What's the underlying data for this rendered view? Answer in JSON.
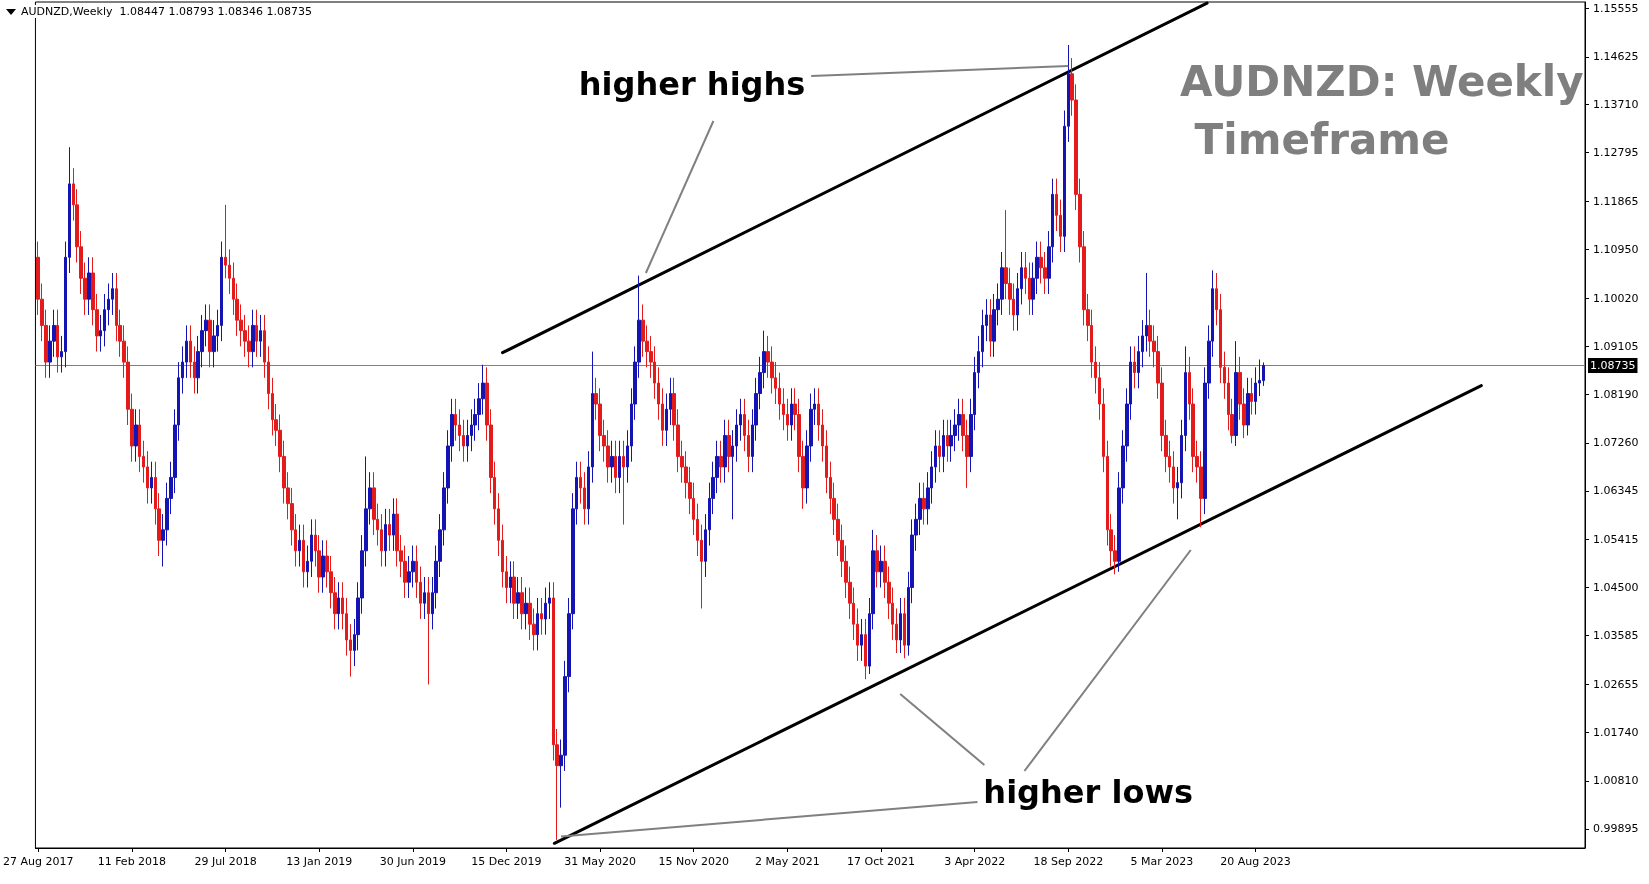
{
  "chart_data": {
    "type": "candlestick",
    "title": "AUDNZD,Weekly  1.08447 1.08793 1.08346 1.08735",
    "subtitle": "AUDNZD: Weekly Timeframe",
    "annotations": [
      {
        "text": "higher highs",
        "x": "2022-09-18",
        "y": 1.1445
      },
      {
        "text": "higher lows",
        "x": "2020-03-22",
        "y": 0.9975
      }
    ],
    "x": [
      "2017-08-27",
      "2017-09-03",
      "2017-09-10",
      "2017-09-17",
      "2017-09-24",
      "2017-10-01",
      "2017-10-08",
      "2017-10-15",
      "2017-10-22",
      "2017-10-29",
      "2017-11-05",
      "2017-11-12",
      "2017-11-19",
      "2017-11-26",
      "2017-12-03",
      "2017-12-10",
      "2017-12-17",
      "2017-12-24",
      "2017-12-31",
      "2018-01-07",
      "2018-01-14",
      "2018-01-21",
      "2018-01-28",
      "2018-02-04",
      "2018-02-11",
      "2018-02-18",
      "2018-02-25",
      "2018-03-04",
      "2018-03-11",
      "2018-03-18",
      "2018-03-25",
      "2018-04-01",
      "2018-04-08",
      "2018-04-15",
      "2018-04-22",
      "2018-04-29",
      "2018-05-06",
      "2018-05-13",
      "2018-05-20",
      "2018-05-27",
      "2018-06-03",
      "2018-06-10",
      "2018-06-17",
      "2018-06-24",
      "2018-07-01",
      "2018-07-08",
      "2018-07-15",
      "2018-07-22",
      "2018-07-29",
      "2018-08-05",
      "2018-08-12",
      "2018-08-19",
      "2018-08-26",
      "2018-09-02",
      "2018-09-09",
      "2018-09-16",
      "2018-09-23",
      "2018-09-30",
      "2018-10-07",
      "2018-10-14",
      "2018-10-21",
      "2018-10-28",
      "2018-11-04",
      "2018-11-11",
      "2018-11-18",
      "2018-11-25",
      "2018-12-02",
      "2018-12-09",
      "2018-12-16",
      "2018-12-23",
      "2018-12-30",
      "2019-01-06",
      "2019-01-13",
      "2019-01-20",
      "2019-01-27",
      "2019-02-03",
      "2019-02-10",
      "2019-02-17",
      "2019-02-24",
      "2019-03-03",
      "2019-03-10",
      "2019-03-17",
      "2019-03-24",
      "2019-03-31",
      "2019-04-07",
      "2019-04-14",
      "2019-04-21",
      "2019-04-28",
      "2019-05-05",
      "2019-05-12",
      "2019-05-19",
      "2019-05-26",
      "2019-06-02",
      "2019-06-09",
      "2019-06-16",
      "2019-06-23",
      "2019-06-30",
      "2019-07-07",
      "2019-07-14",
      "2019-07-21",
      "2019-07-28",
      "2019-08-04",
      "2019-08-11",
      "2019-08-18",
      "2019-08-25",
      "2019-09-01",
      "2019-09-08",
      "2019-09-15",
      "2019-09-22",
      "2019-09-29",
      "2019-10-06",
      "2019-10-13",
      "2019-10-20",
      "2019-10-27",
      "2019-11-03",
      "2019-11-10",
      "2019-11-17",
      "2019-11-24",
      "2019-12-01",
      "2019-12-08",
      "2019-12-15",
      "2019-12-22",
      "2019-12-29",
      "2020-01-05",
      "2020-01-12",
      "2020-01-19",
      "2020-01-26",
      "2020-02-02",
      "2020-02-09",
      "2020-02-16",
      "2020-02-23",
      "2020-03-01",
      "2020-03-08",
      "2020-03-15",
      "2020-03-22",
      "2020-03-29",
      "2020-04-05",
      "2020-04-12",
      "2020-04-19",
      "2020-04-26",
      "2020-05-03",
      "2020-05-10",
      "2020-05-17",
      "2020-05-24",
      "2020-05-31",
      "2020-06-07",
      "2020-06-14",
      "2020-06-21",
      "2020-06-28",
      "2020-07-05",
      "2020-07-12",
      "2020-07-19",
      "2020-07-26",
      "2020-08-02",
      "2020-08-09",
      "2020-08-16",
      "2020-08-23",
      "2020-08-30",
      "2020-09-06",
      "2020-09-13",
      "2020-09-20",
      "2020-09-27",
      "2020-10-04",
      "2020-10-11",
      "2020-10-18",
      "2020-10-25",
      "2020-11-01",
      "2020-11-08",
      "2020-11-15",
      "2020-11-22",
      "2020-11-29",
      "2020-12-06",
      "2020-12-13",
      "2020-12-20",
      "2020-12-27",
      "2021-01-03",
      "2021-01-10",
      "2021-01-17",
      "2021-01-24",
      "2021-01-31",
      "2021-02-07",
      "2021-02-14",
      "2021-02-21",
      "2021-02-28",
      "2021-03-07",
      "2021-03-14",
      "2021-03-21",
      "2021-03-28",
      "2021-04-04",
      "2021-04-11",
      "2021-04-18",
      "2021-04-25",
      "2021-05-02",
      "2021-05-09",
      "2021-05-16",
      "2021-05-23",
      "2021-05-30",
      "2021-06-06",
      "2021-06-13",
      "2021-06-20",
      "2021-06-27",
      "2021-07-04",
      "2021-07-11",
      "2021-07-18",
      "2021-07-25",
      "2021-08-01",
      "2021-08-08",
      "2021-08-15",
      "2021-08-22",
      "2021-08-29",
      "2021-09-05",
      "2021-09-12",
      "2021-09-19",
      "2021-09-26",
      "2021-10-03",
      "2021-10-10",
      "2021-10-17",
      "2021-10-24",
      "2021-10-31",
      "2021-11-07",
      "2021-11-14",
      "2021-11-21",
      "2021-11-28",
      "2021-12-05",
      "2021-12-12",
      "2021-12-19",
      "2021-12-26",
      "2022-01-02",
      "2022-01-09",
      "2022-01-16",
      "2022-01-23",
      "2022-01-30",
      "2022-02-06",
      "2022-02-13",
      "2022-02-20",
      "2022-02-27",
      "2022-03-06",
      "2022-03-13",
      "2022-03-20",
      "2022-03-27",
      "2022-04-03",
      "2022-04-10",
      "2022-04-17",
      "2022-04-24",
      "2022-05-01",
      "2022-05-08",
      "2022-05-15",
      "2022-05-22",
      "2022-05-29",
      "2022-06-05",
      "2022-06-12",
      "2022-06-19",
      "2022-06-26",
      "2022-07-03",
      "2022-07-10",
      "2022-07-17",
      "2022-07-24",
      "2022-07-31",
      "2022-08-07",
      "2022-08-14",
      "2022-08-21",
      "2022-08-28",
      "2022-09-04",
      "2022-09-11",
      "2022-09-18",
      "2022-09-25",
      "2022-10-02",
      "2022-10-09",
      "2022-10-16",
      "2022-10-23",
      "2022-10-30",
      "2022-11-06",
      "2022-11-13",
      "2022-11-20",
      "2022-11-27",
      "2022-12-04",
      "2022-12-11",
      "2022-12-18",
      "2022-12-25",
      "2023-01-01",
      "2023-01-08",
      "2023-01-15",
      "2023-01-22",
      "2023-01-29",
      "2023-02-05",
      "2023-02-12",
      "2023-02-19",
      "2023-02-26",
      "2023-03-05",
      "2023-03-12",
      "2023-03-19",
      "2023-03-26",
      "2023-04-02",
      "2023-04-09",
      "2023-04-16",
      "2023-04-23",
      "2023-04-30",
      "2023-05-07",
      "2023-05-14",
      "2023-05-21",
      "2023-05-28",
      "2023-06-04",
      "2023-06-11",
      "2023-06-18",
      "2023-06-25",
      "2023-07-02",
      "2023-07-09",
      "2023-07-16",
      "2023-07-23",
      "2023-07-30",
      "2023-08-06",
      "2023-08-13",
      "2023-08-20",
      "2023-08-27",
      "2023-09-03"
    ],
    "ohlc": [
      [
        1.108,
        1.111,
        1.097,
        1.1
      ],
      [
        1.1,
        1.103,
        1.092,
        1.095
      ],
      [
        1.095,
        1.098,
        1.085,
        1.088
      ],
      [
        1.088,
        1.095,
        1.085,
        1.092
      ],
      [
        1.092,
        1.098,
        1.089,
        1.095
      ],
      [
        1.095,
        1.098,
        1.086,
        1.089
      ],
      [
        1.089,
        1.093,
        1.086,
        1.09
      ],
      [
        1.09,
        1.111,
        1.087,
        1.108
      ],
      [
        1.108,
        1.129,
        1.105,
        1.122
      ],
      [
        1.122,
        1.125,
        1.115,
        1.118
      ],
      [
        1.118,
        1.121,
        1.107,
        1.11
      ],
      [
        1.11,
        1.113,
        1.101,
        1.104
      ],
      [
        1.104,
        1.107,
        1.097,
        1.1
      ],
      [
        1.1,
        1.108,
        1.097,
        1.105
      ],
      [
        1.105,
        1.108,
        1.095,
        1.098
      ],
      [
        1.098,
        1.101,
        1.09,
        1.093
      ],
      [
        1.093,
        1.097,
        1.09,
        1.094
      ],
      [
        1.094,
        1.101,
        1.091,
        1.098
      ],
      [
        1.098,
        1.103,
        1.095,
        1.1
      ],
      [
        1.1,
        1.105,
        1.097,
        1.102
      ],
      [
        1.102,
        1.105,
        1.092,
        1.095
      ],
      [
        1.095,
        1.098,
        1.089,
        1.092
      ],
      [
        1.092,
        1.095,
        1.085,
        1.088
      ],
      [
        1.088,
        1.091,
        1.076,
        1.079
      ],
      [
        1.079,
        1.082,
        1.069,
        1.072
      ],
      [
        1.072,
        1.079,
        1.069,
        1.076
      ],
      [
        1.076,
        1.079,
        1.067,
        1.07
      ],
      [
        1.07,
        1.073,
        1.065,
        1.068
      ],
      [
        1.068,
        1.071,
        1.061,
        1.064
      ],
      [
        1.064,
        1.069,
        1.061,
        1.066
      ],
      [
        1.066,
        1.069,
        1.057,
        1.06
      ],
      [
        1.06,
        1.063,
        1.051,
        1.054
      ],
      [
        1.054,
        1.059,
        1.049,
        1.056
      ],
      [
        1.056,
        1.065,
        1.053,
        1.062
      ],
      [
        1.062,
        1.069,
        1.059,
        1.066
      ],
      [
        1.066,
        1.079,
        1.063,
        1.076
      ],
      [
        1.076,
        1.088,
        1.073,
        1.085
      ],
      [
        1.085,
        1.091,
        1.082,
        1.088
      ],
      [
        1.088,
        1.095,
        1.085,
        1.092
      ],
      [
        1.092,
        1.095,
        1.085,
        1.088
      ],
      [
        1.088,
        1.091,
        1.082,
        1.085
      ],
      [
        1.085,
        1.093,
        1.082,
        1.09
      ],
      [
        1.09,
        1.097,
        1.087,
        1.094
      ],
      [
        1.094,
        1.099,
        1.091,
        1.096
      ],
      [
        1.096,
        1.099,
        1.087,
        1.09
      ],
      [
        1.09,
        1.096,
        1.087,
        1.093
      ],
      [
        1.093,
        1.098,
        1.09,
        1.095
      ],
      [
        1.095,
        1.111,
        1.092,
        1.108
      ],
      [
        1.108,
        1.118,
        1.104,
        1.1065
      ],
      [
        1.1065,
        1.1095,
        1.101,
        1.104
      ],
      [
        1.104,
        1.107,
        1.097,
        1.1
      ],
      [
        1.1,
        1.103,
        1.093,
        1.096
      ],
      [
        1.096,
        1.099,
        1.091,
        1.094
      ],
      [
        1.094,
        1.097,
        1.089,
        1.092
      ],
      [
        1.092,
        1.095,
        1.087,
        1.09
      ],
      [
        1.09,
        1.098,
        1.087,
        1.095
      ],
      [
        1.095,
        1.098,
        1.089,
        1.092
      ],
      [
        1.092,
        1.097,
        1.089,
        1.094
      ],
      [
        1.094,
        1.097,
        1.085,
        1.088
      ],
      [
        1.088,
        1.091,
        1.079,
        1.082
      ],
      [
        1.082,
        1.085,
        1.074,
        1.077
      ],
      [
        1.077,
        1.08,
        1.072,
        1.075
      ],
      [
        1.075,
        1.078,
        1.067,
        1.07
      ],
      [
        1.07,
        1.073,
        1.061,
        1.064
      ],
      [
        1.064,
        1.067,
        1.058,
        1.061
      ],
      [
        1.061,
        1.064,
        1.053,
        1.056
      ],
      [
        1.056,
        1.059,
        1.049,
        1.052
      ],
      [
        1.052,
        1.057,
        1.049,
        1.054
      ],
      [
        1.054,
        1.057,
        1.045,
        1.048
      ],
      [
        1.048,
        1.053,
        1.045,
        1.05
      ],
      [
        1.05,
        1.058,
        1.047,
        1.055
      ],
      [
        1.055,
        1.058,
        1.049,
        1.052
      ],
      [
        1.052,
        1.055,
        1.044,
        1.047
      ],
      [
        1.047,
        1.054,
        1.044,
        1.051
      ],
      [
        1.051,
        1.054,
        1.045,
        1.048
      ],
      [
        1.048,
        1.051,
        1.041,
        1.044
      ],
      [
        1.044,
        1.047,
        1.037,
        1.04
      ],
      [
        1.04,
        1.046,
        1.037,
        1.043
      ],
      [
        1.043,
        1.046,
        1.037,
        1.04
      ],
      [
        1.04,
        1.043,
        1.032,
        1.035
      ],
      [
        1.035,
        1.038,
        1.028,
        1.033
      ],
      [
        1.033,
        1.039,
        1.03,
        1.036
      ],
      [
        1.036,
        1.046,
        1.033,
        1.043
      ],
      [
        1.043,
        1.055,
        1.04,
        1.052
      ],
      [
        1.052,
        1.07,
        1.049,
        1.06
      ],
      [
        1.06,
        1.067,
        1.057,
        1.064
      ],
      [
        1.064,
        1.067,
        1.055,
        1.058
      ],
      [
        1.058,
        1.061,
        1.053,
        1.056
      ],
      [
        1.056,
        1.059,
        1.049,
        1.052
      ],
      [
        1.052,
        1.06,
        1.049,
        1.057
      ],
      [
        1.057,
        1.06,
        1.052,
        1.055
      ],
      [
        1.055,
        1.062,
        1.052,
        1.059
      ],
      [
        1.059,
        1.062,
        1.049,
        1.052
      ],
      [
        1.052,
        1.055,
        1.047,
        1.05
      ],
      [
        1.05,
        1.053,
        1.043,
        1.046
      ],
      [
        1.046,
        1.051,
        1.043,
        1.048
      ],
      [
        1.048,
        1.053,
        1.045,
        1.05
      ],
      [
        1.05,
        1.053,
        1.043,
        1.046
      ],
      [
        1.046,
        1.049,
        1.039,
        1.042
      ],
      [
        1.042,
        1.047,
        1.039,
        1.044
      ],
      [
        1.044,
        1.047,
        1.0265,
        1.04
      ],
      [
        1.04,
        1.047,
        1.037,
        1.044
      ],
      [
        1.044,
        1.053,
        1.041,
        1.05
      ],
      [
        1.05,
        1.059,
        1.047,
        1.056
      ],
      [
        1.056,
        1.067,
        1.053,
        1.064
      ],
      [
        1.064,
        1.075,
        1.061,
        1.072
      ],
      [
        1.072,
        1.081,
        1.069,
        1.078
      ],
      [
        1.078,
        1.081,
        1.073,
        1.076
      ],
      [
        1.076,
        1.079,
        1.071,
        1.074
      ],
      [
        1.074,
        1.077,
        1.069,
        1.072
      ],
      [
        1.072,
        1.077,
        1.069,
        1.074
      ],
      [
        1.074,
        1.079,
        1.071,
        1.076
      ],
      [
        1.076,
        1.081,
        1.073,
        1.078
      ],
      [
        1.078,
        1.084,
        1.075,
        1.081
      ],
      [
        1.081,
        1.0875,
        1.078,
        1.084
      ],
      [
        1.084,
        1.087,
        1.073,
        1.076
      ],
      [
        1.076,
        1.079,
        1.063,
        1.066
      ],
      [
        1.066,
        1.069,
        1.057,
        1.06
      ],
      [
        1.06,
        1.063,
        1.051,
        1.054
      ],
      [
        1.054,
        1.057,
        1.045,
        1.048
      ],
      [
        1.048,
        1.051,
        1.042,
        1.045
      ],
      [
        1.045,
        1.05,
        1.042,
        1.047
      ],
      [
        1.047,
        1.05,
        1.039,
        1.042
      ],
      [
        1.042,
        1.047,
        1.039,
        1.044
      ],
      [
        1.044,
        1.047,
        1.037,
        1.04
      ],
      [
        1.04,
        1.045,
        1.037,
        1.042
      ],
      [
        1.042,
        1.045,
        1.035,
        1.038
      ],
      [
        1.038,
        1.041,
        1.033,
        1.036
      ],
      [
        1.036,
        1.043,
        1.033,
        1.04
      ],
      [
        1.04,
        1.043,
        1.036,
        1.039
      ],
      [
        1.039,
        1.045,
        1.036,
        1.042
      ],
      [
        1.042,
        1.046,
        1.039,
        1.043
      ],
      [
        1.043,
        1.046,
        1.012,
        1.015
      ],
      [
        1.015,
        1.018,
        0.9968,
        1.011
      ],
      [
        1.011,
        1.016,
        1.003,
        1.013
      ],
      [
        1.013,
        1.031,
        1.01,
        1.028
      ],
      [
        1.028,
        1.043,
        1.025,
        1.04
      ],
      [
        1.04,
        1.063,
        1.037,
        1.06
      ],
      [
        1.06,
        1.069,
        1.057,
        1.066
      ],
      [
        1.066,
        1.069,
        1.061,
        1.064
      ],
      [
        1.064,
        1.067,
        1.057,
        1.06
      ],
      [
        1.06,
        1.071,
        1.057,
        1.068
      ],
      [
        1.068,
        1.09,
        1.065,
        1.082
      ],
      [
        1.082,
        1.085,
        1.077,
        1.08
      ],
      [
        1.08,
        1.083,
        1.071,
        1.074
      ],
      [
        1.074,
        1.077,
        1.069,
        1.072
      ],
      [
        1.072,
        1.075,
        1.065,
        1.068
      ],
      [
        1.068,
        1.073,
        1.065,
        1.07
      ],
      [
        1.07,
        1.073,
        1.063,
        1.066
      ],
      [
        1.066,
        1.073,
        1.063,
        1.07
      ],
      [
        1.07,
        1.073,
        1.057,
        1.068
      ],
      [
        1.068,
        1.075,
        1.065,
        1.072
      ],
      [
        1.072,
        1.083,
        1.069,
        1.08
      ],
      [
        1.08,
        1.091,
        1.077,
        1.088
      ],
      [
        1.088,
        1.1045,
        1.085,
        1.096
      ],
      [
        1.096,
        1.099,
        1.089,
        1.092
      ],
      [
        1.092,
        1.095,
        1.087,
        1.09
      ],
      [
        1.09,
        1.093,
        1.085,
        1.088
      ],
      [
        1.088,
        1.091,
        1.081,
        1.084
      ],
      [
        1.084,
        1.087,
        1.077,
        1.08
      ],
      [
        1.08,
        1.083,
        1.072,
        1.075
      ],
      [
        1.075,
        1.082,
        1.072,
        1.079
      ],
      [
        1.079,
        1.085,
        1.076,
        1.082
      ],
      [
        1.082,
        1.085,
        1.073,
        1.076
      ],
      [
        1.076,
        1.079,
        1.067,
        1.07
      ],
      [
        1.07,
        1.073,
        1.065,
        1.068
      ],
      [
        1.068,
        1.071,
        1.062,
        1.065
      ],
      [
        1.065,
        1.068,
        1.059,
        1.062
      ],
      [
        1.062,
        1.065,
        1.055,
        1.058
      ],
      [
        1.058,
        1.061,
        1.051,
        1.054
      ],
      [
        1.054,
        1.057,
        1.041,
        1.05
      ],
      [
        1.05,
        1.059,
        1.047,
        1.056
      ],
      [
        1.056,
        1.065,
        1.053,
        1.062
      ],
      [
        1.062,
        1.069,
        1.059,
        1.066
      ],
      [
        1.066,
        1.073,
        1.063,
        1.07
      ],
      [
        1.07,
        1.073,
        1.065,
        1.068
      ],
      [
        1.068,
        1.077,
        1.065,
        1.074
      ],
      [
        1.074,
        1.077,
        1.067,
        1.07
      ],
      [
        1.07,
        1.075,
        1.058,
        1.072
      ],
      [
        1.072,
        1.079,
        1.069,
        1.076
      ],
      [
        1.076,
        1.081,
        1.073,
        1.078
      ],
      [
        1.078,
        1.081,
        1.071,
        1.074
      ],
      [
        1.074,
        1.077,
        1.067,
        1.07
      ],
      [
        1.07,
        1.079,
        1.067,
        1.076
      ],
      [
        1.076,
        1.085,
        1.073,
        1.082
      ],
      [
        1.082,
        1.089,
        1.079,
        1.086
      ],
      [
        1.086,
        1.094,
        1.083,
        1.09
      ],
      [
        1.09,
        1.093,
        1.085,
        1.088
      ],
      [
        1.088,
        1.091,
        1.082,
        1.085
      ],
      [
        1.085,
        1.088,
        1.08,
        1.083
      ],
      [
        1.083,
        1.086,
        1.077,
        1.08
      ],
      [
        1.08,
        1.083,
        1.075,
        1.078
      ],
      [
        1.078,
        1.081,
        1.073,
        1.076
      ],
      [
        1.076,
        1.083,
        1.073,
        1.08
      ],
      [
        1.08,
        1.083,
        1.075,
        1.078
      ],
      [
        1.078,
        1.081,
        1.067,
        1.07
      ],
      [
        1.07,
        1.073,
        1.06,
        1.064
      ],
      [
        1.064,
        1.075,
        1.061,
        1.072
      ],
      [
        1.072,
        1.082,
        1.069,
        1.079
      ],
      [
        1.079,
        1.083,
        1.076,
        1.08
      ],
      [
        1.08,
        1.083,
        1.073,
        1.076
      ],
      [
        1.076,
        1.079,
        1.069,
        1.072
      ],
      [
        1.072,
        1.075,
        1.063,
        1.066
      ],
      [
        1.066,
        1.069,
        1.059,
        1.062
      ],
      [
        1.062,
        1.065,
        1.055,
        1.058
      ],
      [
        1.058,
        1.061,
        1.051,
        1.054
      ],
      [
        1.054,
        1.057,
        1.047,
        1.05
      ],
      [
        1.05,
        1.053,
        1.043,
        1.046
      ],
      [
        1.046,
        1.049,
        1.039,
        1.042
      ],
      [
        1.042,
        1.045,
        1.035,
        1.038
      ],
      [
        1.038,
        1.041,
        1.031,
        1.034
      ],
      [
        1.034,
        1.039,
        1.031,
        1.036
      ],
      [
        1.036,
        1.039,
        1.0275,
        1.03
      ],
      [
        1.03,
        1.043,
        1.0285,
        1.04
      ],
      [
        1.04,
        1.056,
        1.037,
        1.052
      ],
      [
        1.052,
        1.055,
        1.045,
        1.048
      ],
      [
        1.048,
        1.053,
        1.045,
        1.05
      ],
      [
        1.05,
        1.053,
        1.043,
        1.046
      ],
      [
        1.046,
        1.049,
        1.039,
        1.042
      ],
      [
        1.042,
        1.045,
        1.035,
        1.038
      ],
      [
        1.038,
        1.041,
        1.0325,
        1.035
      ],
      [
        1.035,
        1.043,
        1.0325,
        1.04
      ],
      [
        1.04,
        1.043,
        1.0315,
        1.034
      ],
      [
        1.034,
        1.048,
        1.032,
        1.045
      ],
      [
        1.045,
        1.058,
        1.042,
        1.055
      ],
      [
        1.055,
        1.061,
        1.052,
        1.058
      ],
      [
        1.058,
        1.065,
        1.055,
        1.062
      ],
      [
        1.062,
        1.065,
        1.057,
        1.06
      ],
      [
        1.06,
        1.067,
        1.057,
        1.064
      ],
      [
        1.064,
        1.071,
        1.061,
        1.068
      ],
      [
        1.068,
        1.075,
        1.065,
        1.072
      ],
      [
        1.072,
        1.075,
        1.067,
        1.07
      ],
      [
        1.07,
        1.077,
        1.067,
        1.074
      ],
      [
        1.074,
        1.077,
        1.069,
        1.072
      ],
      [
        1.072,
        1.077,
        1.069,
        1.074
      ],
      [
        1.074,
        1.079,
        1.071,
        1.076
      ],
      [
        1.076,
        1.081,
        1.073,
        1.078
      ],
      [
        1.078,
        1.081,
        1.071,
        1.074
      ],
      [
        1.074,
        1.077,
        1.064,
        1.07
      ],
      [
        1.07,
        1.081,
        1.067,
        1.078
      ],
      [
        1.078,
        1.089,
        1.075,
        1.086
      ],
      [
        1.086,
        1.093,
        1.083,
        1.09
      ],
      [
        1.09,
        1.098,
        1.087,
        1.095
      ],
      [
        1.095,
        1.1,
        1.092,
        1.097
      ],
      [
        1.097,
        1.1,
        1.089,
        1.092
      ],
      [
        1.092,
        1.101,
        1.089,
        1.098
      ],
      [
        1.098,
        1.103,
        1.095,
        1.1
      ],
      [
        1.1,
        1.109,
        1.097,
        1.106
      ],
      [
        1.106,
        1.117,
        1.1,
        1.103
      ],
      [
        1.103,
        1.106,
        1.097,
        1.1
      ],
      [
        1.1,
        1.103,
        1.094,
        1.097
      ],
      [
        1.097,
        1.105,
        1.094,
        1.102
      ],
      [
        1.102,
        1.109,
        1.099,
        1.106
      ],
      [
        1.106,
        1.109,
        1.101,
        1.104
      ],
      [
        1.104,
        1.107,
        1.097,
        1.1
      ],
      [
        1.1,
        1.107,
        1.097,
        1.104
      ],
      [
        1.104,
        1.111,
        1.101,
        1.108
      ],
      [
        1.108,
        1.111,
        1.103,
        1.106
      ],
      [
        1.106,
        1.109,
        1.101,
        1.104
      ],
      [
        1.104,
        1.113,
        1.101,
        1.11
      ],
      [
        1.11,
        1.123,
        1.107,
        1.12
      ],
      [
        1.12,
        1.123,
        1.113,
        1.116
      ],
      [
        1.116,
        1.119,
        1.109,
        1.112
      ],
      [
        1.112,
        1.136,
        1.109,
        1.133
      ],
      [
        1.133,
        1.1485,
        1.13,
        1.143
      ],
      [
        1.143,
        1.146,
        1.135,
        1.138
      ],
      [
        1.138,
        1.141,
        1.117,
        1.12
      ],
      [
        1.12,
        1.123,
        1.107,
        1.11
      ],
      [
        1.11,
        1.113,
        1.095,
        1.098
      ],
      [
        1.098,
        1.101,
        1.092,
        1.095
      ],
      [
        1.095,
        1.098,
        1.085,
        1.088
      ],
      [
        1.088,
        1.091,
        1.082,
        1.085
      ],
      [
        1.085,
        1.088,
        1.077,
        1.08
      ],
      [
        1.08,
        1.083,
        1.067,
        1.07
      ],
      [
        1.07,
        1.073,
        1.053,
        1.056
      ],
      [
        1.056,
        1.059,
        1.049,
        1.052
      ],
      [
        1.052,
        1.055,
        1.0475,
        1.05
      ],
      [
        1.05,
        1.067,
        1.048,
        1.064
      ],
      [
        1.064,
        1.075,
        1.061,
        1.072
      ],
      [
        1.072,
        1.083,
        1.069,
        1.08
      ],
      [
        1.08,
        1.091,
        1.077,
        1.088
      ],
      [
        1.088,
        1.091,
        1.083,
        1.086
      ],
      [
        1.086,
        1.093,
        1.083,
        1.09
      ],
      [
        1.09,
        1.096,
        1.087,
        1.093
      ],
      [
        1.093,
        1.105,
        1.09,
        1.095
      ],
      [
        1.095,
        1.098,
        1.089,
        1.092
      ],
      [
        1.092,
        1.095,
        1.087,
        1.09
      ],
      [
        1.09,
        1.093,
        1.081,
        1.084
      ],
      [
        1.084,
        1.087,
        1.071,
        1.074
      ],
      [
        1.074,
        1.077,
        1.067,
        1.07
      ],
      [
        1.07,
        1.073,
        1.065,
        1.068
      ],
      [
        1.068,
        1.071,
        1.061,
        1.064
      ],
      [
        1.064,
        1.068,
        1.058,
        1.065
      ],
      [
        1.065,
        1.077,
        1.062,
        1.074
      ],
      [
        1.074,
        1.091,
        1.071,
        1.086
      ],
      [
        1.086,
        1.089,
        1.077,
        1.08
      ],
      [
        1.08,
        1.083,
        1.067,
        1.07
      ],
      [
        1.07,
        1.073,
        1.065,
        1.068
      ],
      [
        1.068,
        1.071,
        1.0565,
        1.062
      ],
      [
        1.062,
        1.087,
        1.059,
        1.084
      ],
      [
        1.084,
        1.095,
        1.081,
        1.092
      ],
      [
        1.092,
        1.1055,
        1.089,
        1.102
      ],
      [
        1.102,
        1.105,
        1.095,
        1.098
      ],
      [
        1.098,
        1.101,
        1.084,
        1.087
      ],
      [
        1.087,
        1.09,
        1.081,
        1.084
      ],
      [
        1.084,
        1.087,
        1.075,
        1.078
      ],
      [
        1.078,
        1.081,
        1.0725,
        1.074
      ],
      [
        1.074,
        1.092,
        1.072,
        1.086
      ],
      [
        1.086,
        1.089,
        1.077,
        1.08
      ],
      [
        1.08,
        1.083,
        1.0735,
        1.076
      ],
      [
        1.076,
        1.085,
        1.074,
        1.082
      ],
      [
        1.082,
        1.085,
        1.078,
        1.0805
      ],
      [
        1.0805,
        1.087,
        1.078,
        1.084
      ],
      [
        1.084,
        1.0885,
        1.0815,
        1.0845
      ],
      [
        1.08447,
        1.08793,
        1.08346,
        1.08735
      ]
    ],
    "series": [
      {
        "type": "line",
        "color": "#000000",
        "x": [
          "2019-12-08",
          "2023-05-25"
        ],
        "values": [
          1.0898,
          1.1565
        ]
      },
      {
        "type": "line",
        "color": "#000000",
        "x": [
          "2020-03-10",
          "2024-09-28"
        ],
        "values": [
          0.9962,
          1.0835
        ]
      }
    ],
    "marker": "none",
    "xlim": [
      "2017-08-22",
      "2025-04-02"
    ],
    "xticks": [
      {
        "value": "2017-08-27",
        "label": "27 Aug 2017"
      },
      {
        "value": "2018-02-11",
        "label": "11 Feb 2018"
      },
      {
        "value": "2018-07-29",
        "label": "29 Jul 2018"
      },
      {
        "value": "2019-01-13",
        "label": "13 Jan 2019"
      },
      {
        "value": "2019-06-30",
        "label": "30 Jun 2019"
      },
      {
        "value": "2019-12-15",
        "label": "15 Dec 2019"
      },
      {
        "value": "2020-05-31",
        "label": "31 May 2020"
      },
      {
        "value": "2020-11-15",
        "label": "15 Nov 2020"
      },
      {
        "value": "2021-05-02",
        "label": "2 May 2021"
      },
      {
        "value": "2021-10-17",
        "label": "17 Oct 2021"
      },
      {
        "value": "2022-04-03",
        "label": "3 Apr 2022"
      },
      {
        "value": "2022-09-18",
        "label": "18 Sep 2022"
      },
      {
        "value": "2023-03-05",
        "label": "5 Mar 2023"
      },
      {
        "value": "2023-08-20",
        "label": "20 Aug 2023"
      }
    ],
    "ylim": [
      0.9953,
      1.1567
    ],
    "yticks": [
      0.99895,
      {
        "value": 1.0081,
        "label": "1.00810"
      },
      {
        "value": 1.0174,
        "label": "1.01740"
      },
      1.02655,
      1.03585,
      {
        "value": 1.045,
        "label": "1.04500"
      },
      1.05415,
      1.06345,
      {
        "value": 1.0726,
        "label": "1.07260"
      },
      {
        "value": 1.0819,
        "label": "1.08190"
      },
      1.09105,
      {
        "value": 1.1002,
        "label": "1.10020"
      },
      {
        "value": 1.1095,
        "label": "1.10950"
      },
      1.11865,
      1.12795,
      {
        "value": 1.1371,
        "label": "1.13710"
      },
      1.14625,
      1.15555
    ],
    "ref_lines": [
      {
        "axis": "y",
        "value": 1.08735,
        "label": "1.08735",
        "color": "#808080"
      }
    ],
    "grid": false
  }
}
